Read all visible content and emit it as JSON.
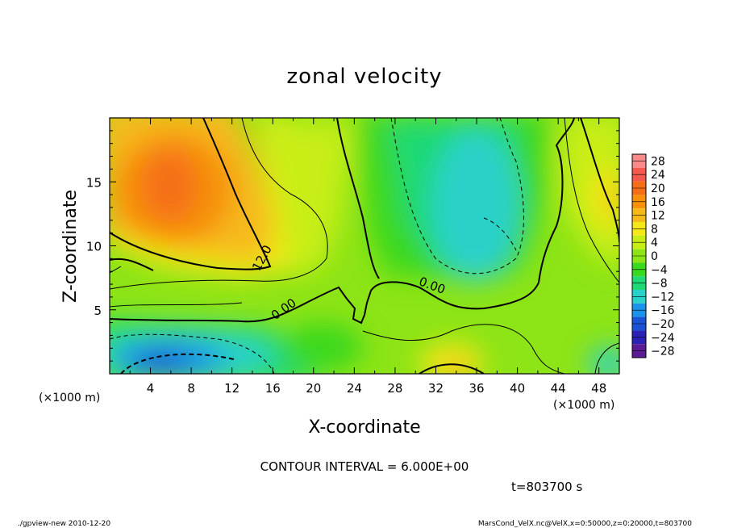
{
  "chart_data": {
    "type": "heatmap",
    "title": "zonal velocity",
    "xlabel": "X-coordinate",
    "ylabel": "Z-coordinate",
    "x_unit": "(×1000 m)",
    "y_unit": "(×1000 m)",
    "xlim": [
      0,
      50
    ],
    "ylim": [
      0,
      20
    ],
    "x_ticks": [
      "4",
      "8",
      "12",
      "16",
      "20",
      "24",
      "28",
      "32",
      "36",
      "40",
      "44",
      "48"
    ],
    "y_ticks": [
      "5",
      "10",
      "15"
    ],
    "colorbar": {
      "levels": [
        "28",
        "24",
        "20",
        "16",
        "12",
        "8",
        "4",
        "0",
        "−4",
        "−8",
        "−12",
        "−16",
        "−20",
        "−24",
        "−28"
      ],
      "colors": [
        "#f88a8a",
        "#f55a4e",
        "#f56e17",
        "#f7900a",
        "#f5ba1a",
        "#f4e915",
        "#c7ee13",
        "#8de416",
        "#3ad81e",
        "#1fd975",
        "#29d1c9",
        "#1b93e9",
        "#1a53d4",
        "#2a22b4",
        "#5b1a96"
      ]
    },
    "contour_labels": [
      {
        "text": "12.0",
        "x": 15.3,
        "z": 8.9
      },
      {
        "text": "0.00",
        "x": 17.3,
        "z": 4.8
      },
      {
        "text": "0.00",
        "x": 31.5,
        "z": 6.6
      }
    ],
    "contour_interval": "CONTOUR INTERVAL = 6.000E+00",
    "time": "t=803700 s"
  },
  "footer": {
    "left": "./gpview-new  2010-12-20",
    "right": "MarsCond_VelX.nc@VelX,x=0:50000,z=0:20000,t=803700"
  }
}
